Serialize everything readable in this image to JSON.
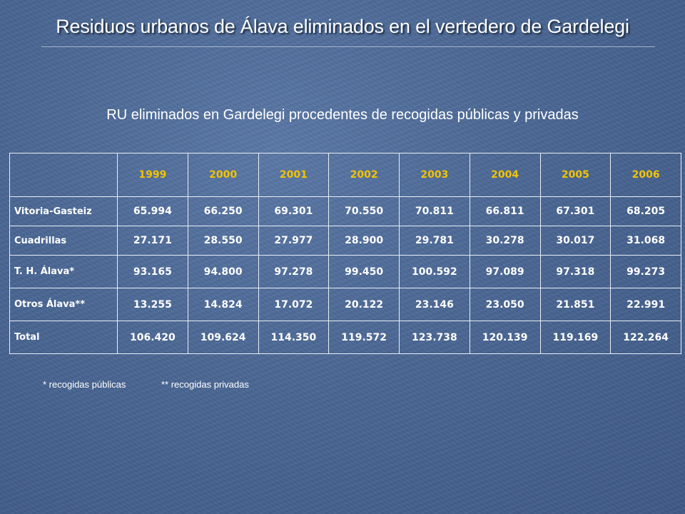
{
  "title": "Residuos urbanos de Álava eliminados en el vertedero de Gardelegi",
  "subtitle": "RU eliminados en Gardelegi procedentes de recogidas públicas y privadas",
  "table": {
    "corner": "",
    "years": [
      "1999",
      "2000",
      "2001",
      "2002",
      "2003",
      "2004",
      "2005",
      "2006"
    ],
    "rows": [
      {
        "label": "Vitoria-Gasteiz",
        "values": [
          "65.994",
          "66.250",
          "69.301",
          "70.550",
          "70.811",
          "66.811",
          "67.301",
          "68.205"
        ]
      },
      {
        "label": "Cuadrillas",
        "values": [
          "27.171",
          "28.550",
          "27.977",
          "28.900",
          "29.781",
          "30.278",
          "30.017",
          "31.068"
        ]
      },
      {
        "label": "T. H. Álava*",
        "values": [
          "93.165",
          "94.800",
          "97.278",
          "99.450",
          "100.592",
          "97.089",
          "97.318",
          "99.273"
        ]
      },
      {
        "label": "Otros Álava**",
        "values": [
          "13.255",
          "14.824",
          "17.072",
          "20.122",
          "23.146",
          "23.050",
          "21.851",
          "22.991"
        ]
      },
      {
        "label": "Total",
        "values": [
          "106.420",
          "109.624",
          "114.350",
          "119.572",
          "123.738",
          "120.139",
          "119.169",
          "122.264"
        ]
      }
    ]
  },
  "notes": {
    "public": "* recogidas públicas",
    "private": "** recogidas privadas"
  },
  "colors": {
    "background": "#4a6794",
    "year_header": "#f2c300",
    "text": "#ffffff"
  }
}
